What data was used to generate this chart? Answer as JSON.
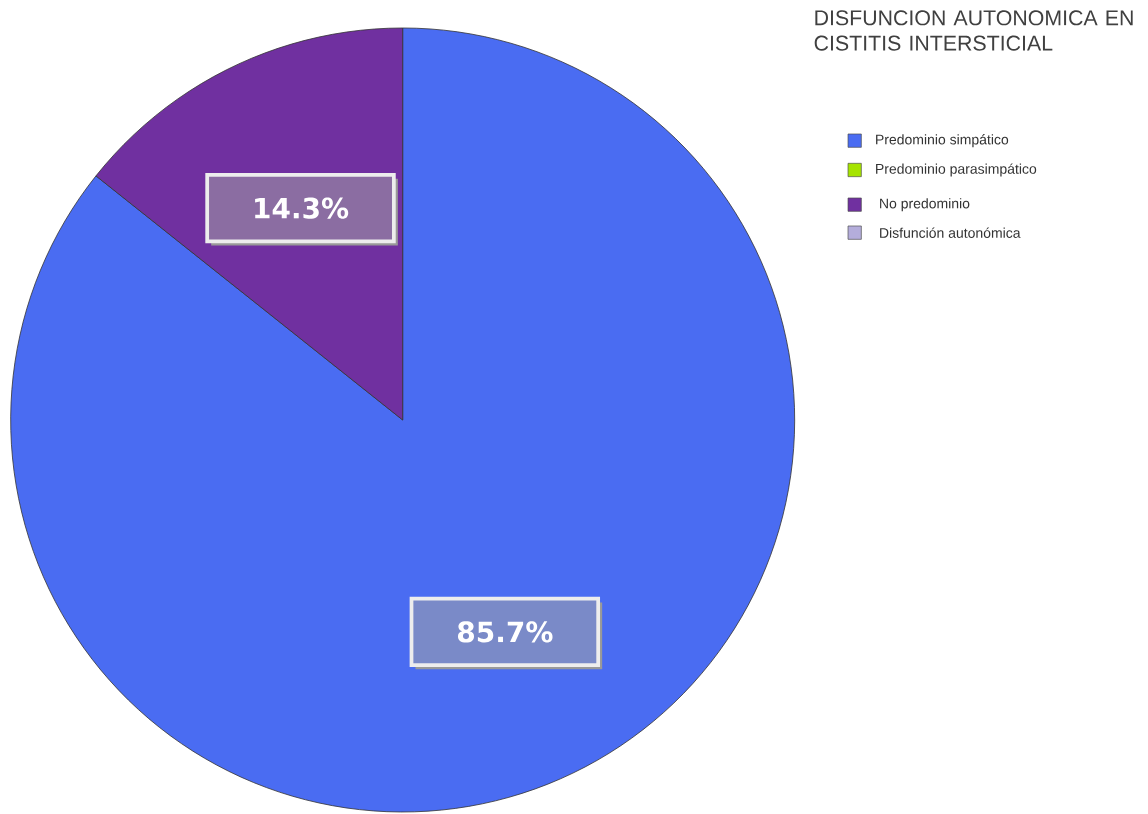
{
  "chart_data": {
    "type": "pie",
    "title": "DISFUNCION AUTONOMICA EN CISTITIS INTERSTICIAL",
    "categories": [
      "Predominio simpático",
      "Predominio parasimpático",
      "No predominio",
      "Disfunción autonómica"
    ],
    "values": [
      85.7,
      0,
      14.3,
      0
    ],
    "colors": [
      "#4a6cf2",
      "#a6e400",
      "#7030a0",
      "#b4addb"
    ],
    "value_labels": [
      "85.7%",
      null,
      "14.3%",
      null
    ],
    "legend": "top right"
  }
}
